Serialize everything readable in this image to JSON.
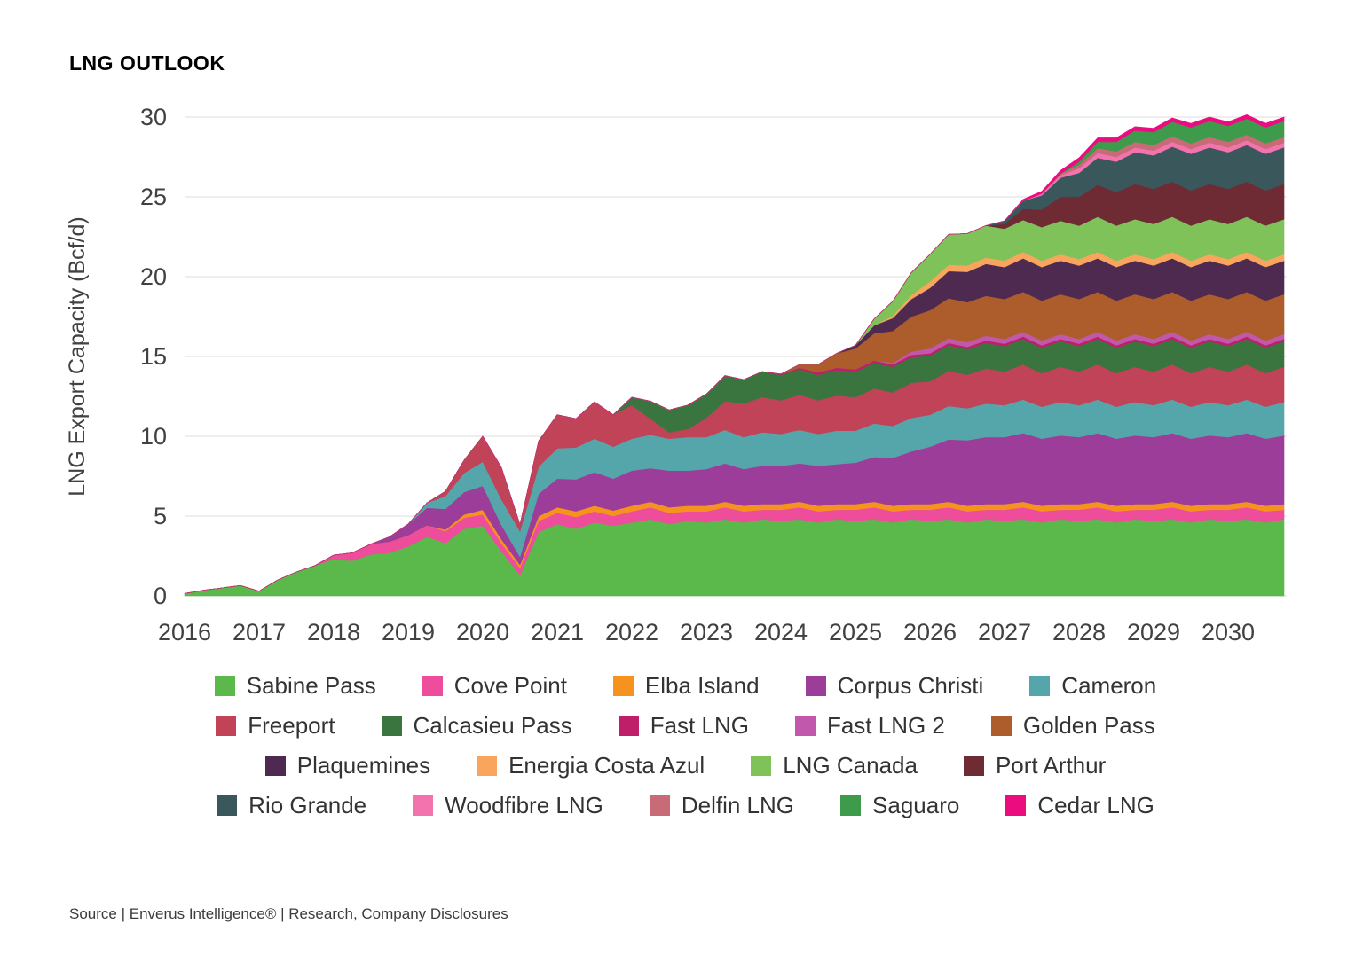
{
  "title": "LNG OUTLOOK",
  "source": "Source | Enverus Intelligence® | Research, Company Disclosures",
  "chart_data": {
    "type": "area",
    "stacked": true,
    "title": "LNG OUTLOOK",
    "xlabel": "",
    "ylabel": "LNG Export Capacity (Bcf/d)",
    "ylim": [
      0,
      30
    ],
    "yticks": [
      0,
      5,
      10,
      15,
      20,
      25,
      30
    ],
    "xticks": [
      2016,
      2017,
      2018,
      2019,
      2020,
      2021,
      2022,
      2023,
      2024,
      2025,
      2026,
      2027,
      2028,
      2029,
      2030
    ],
    "grid": "horizontal",
    "legend_position": "bottom",
    "x_start": 2016.0,
    "x_step_years": 0.25,
    "x_unit": "quarter",
    "axis_color": "#414042",
    "grid_color": "#e3e3e3",
    "series": [
      {
        "name": "Sabine Pass",
        "color": "#5bb84b",
        "values": [
          0.15,
          0.35,
          0.5,
          0.65,
          0.3,
          1.0,
          1.5,
          1.9,
          2.3,
          2.2,
          2.6,
          2.7,
          3.1,
          3.7,
          3.3,
          4.2,
          4.4,
          2.8,
          1.3,
          4.0,
          4.5,
          4.2,
          4.6,
          4.4,
          4.6,
          4.8,
          4.5,
          4.7,
          4.6,
          4.8,
          4.6,
          4.8,
          4.7,
          4.8,
          4.6,
          4.8,
          4.7,
          4.8,
          4.6,
          4.8,
          4.7,
          4.8,
          4.6,
          4.8,
          4.7,
          4.8,
          4.6,
          4.8,
          4.7,
          4.8,
          4.6,
          4.8,
          4.7,
          4.8,
          4.6,
          4.8,
          4.7,
          4.8,
          4.6,
          4.8
        ]
      },
      {
        "name": "Cove Point",
        "color": "#ee4d9b",
        "values": [
          0,
          0,
          0,
          0,
          0,
          0,
          0,
          0,
          0.25,
          0.5,
          0.65,
          0.7,
          0.7,
          0.72,
          0.75,
          0.7,
          0.7,
          0.5,
          0.45,
          0.7,
          0.7,
          0.75,
          0.7,
          0.6,
          0.7,
          0.75,
          0.7,
          0.6,
          0.7,
          0.75,
          0.7,
          0.6,
          0.7,
          0.75,
          0.7,
          0.6,
          0.7,
          0.75,
          0.7,
          0.6,
          0.7,
          0.75,
          0.7,
          0.6,
          0.7,
          0.75,
          0.7,
          0.6,
          0.7,
          0.75,
          0.7,
          0.6,
          0.7,
          0.75,
          0.7,
          0.6,
          0.7,
          0.75,
          0.7,
          0.6
        ]
      },
      {
        "name": "Elba Island",
        "color": "#f6921e",
        "values": [
          0,
          0,
          0,
          0,
          0,
          0,
          0,
          0,
          0,
          0,
          0,
          0,
          0,
          0,
          0.1,
          0.2,
          0.3,
          0.25,
          0.2,
          0.3,
          0.35,
          0.35,
          0.35,
          0.35,
          0.35,
          0.35,
          0.35,
          0.35,
          0.35,
          0.35,
          0.35,
          0.35,
          0.35,
          0.35,
          0.35,
          0.35,
          0.35,
          0.35,
          0.35,
          0.35,
          0.35,
          0.35,
          0.35,
          0.35,
          0.35,
          0.35,
          0.35,
          0.35,
          0.35,
          0.35,
          0.35,
          0.35,
          0.35,
          0.35,
          0.35,
          0.35,
          0.35,
          0.35,
          0.35,
          0.35
        ]
      },
      {
        "name": "Corpus Christi",
        "color": "#9c3d9a",
        "values": [
          0,
          0,
          0,
          0,
          0,
          0,
          0,
          0,
          0,
          0,
          0,
          0.3,
          0.7,
          1.1,
          1.3,
          1.4,
          1.5,
          0.9,
          0.5,
          1.4,
          1.8,
          2.0,
          2.1,
          2.0,
          2.2,
          2.1,
          2.3,
          2.2,
          2.3,
          2.4,
          2.3,
          2.4,
          2.4,
          2.4,
          2.5,
          2.5,
          2.6,
          2.8,
          3.0,
          3.3,
          3.6,
          3.9,
          4.1,
          4.2,
          4.2,
          4.3,
          4.2,
          4.3,
          4.2,
          4.3,
          4.2,
          4.3,
          4.2,
          4.3,
          4.2,
          4.3,
          4.2,
          4.3,
          4.2,
          4.3
        ]
      },
      {
        "name": "Cameron",
        "color": "#55a6ab",
        "values": [
          0,
          0,
          0,
          0,
          0,
          0,
          0,
          0,
          0,
          0,
          0,
          0,
          0,
          0.3,
          0.8,
          1.2,
          1.5,
          1.6,
          1.6,
          1.7,
          1.9,
          2.0,
          2.1,
          2.0,
          2.0,
          2.1,
          2.0,
          2.1,
          2.0,
          2.1,
          2.0,
          2.1,
          2.0,
          2.1,
          2.0,
          2.1,
          2.0,
          2.1,
          2.0,
          2.1,
          2.0,
          2.1,
          2.0,
          2.1,
          2.0,
          2.1,
          2.0,
          2.1,
          2.0,
          2.1,
          2.0,
          2.1,
          2.0,
          2.1,
          2.0,
          2.1,
          2.0,
          2.1,
          2.0,
          2.1
        ]
      },
      {
        "name": "Freeport",
        "color": "#c14358",
        "values": [
          0,
          0,
          0,
          0,
          0,
          0,
          0,
          0,
          0,
          0,
          0,
          0,
          0,
          0,
          0.3,
          0.8,
          1.6,
          2.0,
          0.4,
          1.6,
          2.1,
          1.8,
          2.3,
          2.0,
          2.1,
          1.0,
          0.4,
          0.5,
          1.2,
          1.8,
          2.1,
          2.2,
          2.1,
          2.2,
          2.1,
          2.2,
          2.1,
          2.2,
          2.1,
          2.2,
          2.1,
          2.2,
          2.1,
          2.2,
          2.1,
          2.2,
          2.1,
          2.2,
          2.1,
          2.2,
          2.1,
          2.2,
          2.1,
          2.2,
          2.1,
          2.2,
          2.1,
          2.2,
          2.1,
          2.2
        ]
      },
      {
        "name": "Calcasieu Pass",
        "color": "#3a7540",
        "values": [
          0,
          0,
          0,
          0,
          0,
          0,
          0,
          0,
          0,
          0,
          0,
          0,
          0,
          0,
          0,
          0,
          0,
          0,
          0,
          0,
          0,
          0,
          0,
          0,
          0.5,
          1.1,
          1.4,
          1.5,
          1.5,
          1.6,
          1.5,
          1.6,
          1.6,
          1.6,
          1.6,
          1.6,
          1.6,
          1.6,
          1.6,
          1.6,
          1.6,
          1.6,
          1.6,
          1.6,
          1.6,
          1.6,
          1.6,
          1.6,
          1.6,
          1.6,
          1.6,
          1.6,
          1.6,
          1.6,
          1.6,
          1.6,
          1.6,
          1.6,
          1.6,
          1.6
        ]
      },
      {
        "name": "Fast LNG",
        "color": "#bf1f68",
        "values": [
          0,
          0,
          0,
          0,
          0,
          0,
          0,
          0,
          0,
          0,
          0,
          0,
          0,
          0,
          0,
          0,
          0,
          0,
          0,
          0,
          0,
          0,
          0,
          0,
          0,
          0,
          0,
          0,
          0,
          0,
          0,
          0,
          0.05,
          0.1,
          0.15,
          0.15,
          0.15,
          0.15,
          0.15,
          0.15,
          0.15,
          0.15,
          0.15,
          0.15,
          0.15,
          0.15,
          0.15,
          0.15,
          0.15,
          0.15,
          0.15,
          0.15,
          0.15,
          0.15,
          0.15,
          0.15,
          0.15,
          0.15,
          0.15,
          0.15
        ]
      },
      {
        "name": "Fast LNG 2",
        "color": "#c158ab",
        "values": [
          0,
          0,
          0,
          0,
          0,
          0,
          0,
          0,
          0,
          0,
          0,
          0,
          0,
          0,
          0,
          0,
          0,
          0,
          0,
          0,
          0,
          0,
          0,
          0,
          0,
          0,
          0,
          0,
          0,
          0,
          0,
          0,
          0,
          0,
          0,
          0,
          0,
          0,
          0.1,
          0.2,
          0.3,
          0.3,
          0.3,
          0.3,
          0.3,
          0.3,
          0.3,
          0.3,
          0.3,
          0.3,
          0.3,
          0.3,
          0.3,
          0.3,
          0.3,
          0.3,
          0.3,
          0.3,
          0.3,
          0.3
        ]
      },
      {
        "name": "Golden Pass",
        "color": "#ad5d2b",
        "values": [
          0,
          0,
          0,
          0,
          0,
          0,
          0,
          0,
          0,
          0,
          0,
          0,
          0,
          0,
          0,
          0,
          0,
          0,
          0,
          0,
          0,
          0,
          0,
          0,
          0,
          0,
          0,
          0,
          0,
          0,
          0,
          0,
          0,
          0.2,
          0.5,
          0.9,
          1.3,
          1.7,
          2.0,
          2.2,
          2.4,
          2.5,
          2.5,
          2.5,
          2.5,
          2.5,
          2.5,
          2.5,
          2.5,
          2.5,
          2.5,
          2.5,
          2.5,
          2.5,
          2.5,
          2.5,
          2.5,
          2.5,
          2.5,
          2.5
        ]
      },
      {
        "name": "Plaquemines",
        "color": "#4f2a50",
        "values": [
          0,
          0,
          0,
          0,
          0,
          0,
          0,
          0,
          0,
          0,
          0,
          0,
          0,
          0,
          0,
          0,
          0,
          0,
          0,
          0,
          0,
          0,
          0,
          0,
          0,
          0,
          0,
          0,
          0,
          0,
          0,
          0,
          0,
          0,
          0,
          0,
          0.2,
          0.5,
          0.8,
          1.1,
          1.4,
          1.7,
          1.9,
          2.0,
          2.0,
          2.1,
          2.1,
          2.1,
          2.1,
          2.1,
          2.1,
          2.1,
          2.1,
          2.1,
          2.1,
          2.1,
          2.1,
          2.1,
          2.1,
          2.1
        ]
      },
      {
        "name": "Energia Costa Azul",
        "color": "#f9a55e",
        "values": [
          0,
          0,
          0,
          0,
          0,
          0,
          0,
          0,
          0,
          0,
          0,
          0,
          0,
          0,
          0,
          0,
          0,
          0,
          0,
          0,
          0,
          0,
          0,
          0,
          0,
          0,
          0,
          0,
          0,
          0,
          0,
          0,
          0,
          0,
          0,
          0,
          0,
          0,
          0.15,
          0.25,
          0.4,
          0.4,
          0.4,
          0.4,
          0.4,
          0.4,
          0.4,
          0.4,
          0.4,
          0.4,
          0.4,
          0.4,
          0.4,
          0.4,
          0.4,
          0.4,
          0.4,
          0.4,
          0.4,
          0.4
        ]
      },
      {
        "name": "LNG Canada",
        "color": "#7fc259",
        "values": [
          0,
          0,
          0,
          0,
          0,
          0,
          0,
          0,
          0,
          0,
          0,
          0,
          0,
          0,
          0,
          0,
          0,
          0,
          0,
          0,
          0,
          0,
          0,
          0,
          0,
          0,
          0,
          0,
          0,
          0,
          0,
          0,
          0,
          0,
          0,
          0,
          0,
          0.4,
          0.9,
          1.4,
          1.7,
          1.9,
          2.0,
          2.0,
          2.0,
          2.0,
          2.1,
          2.1,
          2.1,
          2.2,
          2.2,
          2.2,
          2.2,
          2.2,
          2.2,
          2.2,
          2.2,
          2.2,
          2.2,
          2.2
        ]
      },
      {
        "name": "Port Arthur",
        "color": "#6f2b33",
        "values": [
          0,
          0,
          0,
          0,
          0,
          0,
          0,
          0,
          0,
          0,
          0,
          0,
          0,
          0,
          0,
          0,
          0,
          0,
          0,
          0,
          0,
          0,
          0,
          0,
          0,
          0,
          0,
          0,
          0,
          0,
          0,
          0,
          0,
          0,
          0,
          0,
          0,
          0,
          0,
          0,
          0,
          0,
          0,
          0,
          0.3,
          0.7,
          1.1,
          1.5,
          1.8,
          2.0,
          2.1,
          2.2,
          2.2,
          2.2,
          2.2,
          2.2,
          2.2,
          2.2,
          2.2,
          2.2
        ]
      },
      {
        "name": "Rio Grande",
        "color": "#3a575c",
        "values": [
          0,
          0,
          0,
          0,
          0,
          0,
          0,
          0,
          0,
          0,
          0,
          0,
          0,
          0,
          0,
          0,
          0,
          0,
          0,
          0,
          0,
          0,
          0,
          0,
          0,
          0,
          0,
          0,
          0,
          0,
          0,
          0,
          0,
          0,
          0,
          0,
          0,
          0,
          0,
          0,
          0,
          0,
          0,
          0,
          0.2,
          0.5,
          0.9,
          1.2,
          1.5,
          1.7,
          1.9,
          2.0,
          2.1,
          2.2,
          2.3,
          2.3,
          2.3,
          2.3,
          2.3,
          2.3
        ]
      },
      {
        "name": "Woodfibre LNG",
        "color": "#f273ae",
        "values": [
          0,
          0,
          0,
          0,
          0,
          0,
          0,
          0,
          0,
          0,
          0,
          0,
          0,
          0,
          0,
          0,
          0,
          0,
          0,
          0,
          0,
          0,
          0,
          0,
          0,
          0,
          0,
          0,
          0,
          0,
          0,
          0,
          0,
          0,
          0,
          0,
          0,
          0,
          0,
          0,
          0,
          0,
          0,
          0,
          0,
          0,
          0.1,
          0.15,
          0.3,
          0.3,
          0.3,
          0.3,
          0.3,
          0.3,
          0.3,
          0.3,
          0.3,
          0.3,
          0.3,
          0.3
        ]
      },
      {
        "name": "Delfin LNG",
        "color": "#c86b77",
        "values": [
          0,
          0,
          0,
          0,
          0,
          0,
          0,
          0,
          0,
          0,
          0,
          0,
          0,
          0,
          0,
          0,
          0,
          0,
          0,
          0,
          0,
          0,
          0,
          0,
          0,
          0,
          0,
          0,
          0,
          0,
          0,
          0,
          0,
          0,
          0,
          0,
          0,
          0,
          0,
          0,
          0,
          0,
          0,
          0,
          0,
          0,
          0,
          0.1,
          0.2,
          0.3,
          0.35,
          0.35,
          0.35,
          0.35,
          0.35,
          0.35,
          0.35,
          0.35,
          0.35,
          0.35
        ]
      },
      {
        "name": "Saguaro",
        "color": "#3f9b4c",
        "values": [
          0,
          0,
          0,
          0,
          0,
          0,
          0,
          0,
          0,
          0,
          0,
          0,
          0,
          0,
          0,
          0,
          0,
          0,
          0,
          0,
          0,
          0,
          0,
          0,
          0,
          0,
          0,
          0,
          0,
          0,
          0,
          0,
          0,
          0,
          0,
          0,
          0,
          0,
          0,
          0,
          0,
          0,
          0,
          0,
          0,
          0,
          0,
          0,
          0.2,
          0.4,
          0.6,
          0.7,
          0.8,
          0.9,
          1.0,
          1.0,
          1.0,
          1.0,
          1.0,
          1.0
        ]
      },
      {
        "name": "Cedar LNG",
        "color": "#eb0d80",
        "values": [
          0,
          0,
          0,
          0,
          0,
          0,
          0,
          0,
          0,
          0,
          0,
          0,
          0,
          0,
          0,
          0,
          0,
          0,
          0,
          0,
          0,
          0,
          0,
          0,
          0,
          0,
          0,
          0,
          0,
          0,
          0,
          0,
          0,
          0,
          0,
          0,
          0,
          0,
          0,
          0,
          0,
          0,
          0,
          0,
          0,
          0.1,
          0.15,
          0.2,
          0.25,
          0.25,
          0.25,
          0.25,
          0.25,
          0.25,
          0.25,
          0.25,
          0.25,
          0.25,
          0.25,
          0.25
        ]
      }
    ]
  },
  "legend_rows": [
    [
      "Sabine Pass",
      "Cove Point",
      "Elba Island",
      "Corpus Christi",
      "Cameron"
    ],
    [
      "Freeport",
      "Calcasieu Pass",
      "Fast LNG",
      "Fast LNG 2",
      "Golden Pass"
    ],
    [
      "Plaquemines",
      "Energia Costa Azul",
      "LNG Canada",
      "Port Arthur"
    ],
    [
      "Rio Grande",
      "Woodfibre LNG",
      "Delfin LNG",
      "Saguaro",
      "Cedar LNG"
    ]
  ]
}
